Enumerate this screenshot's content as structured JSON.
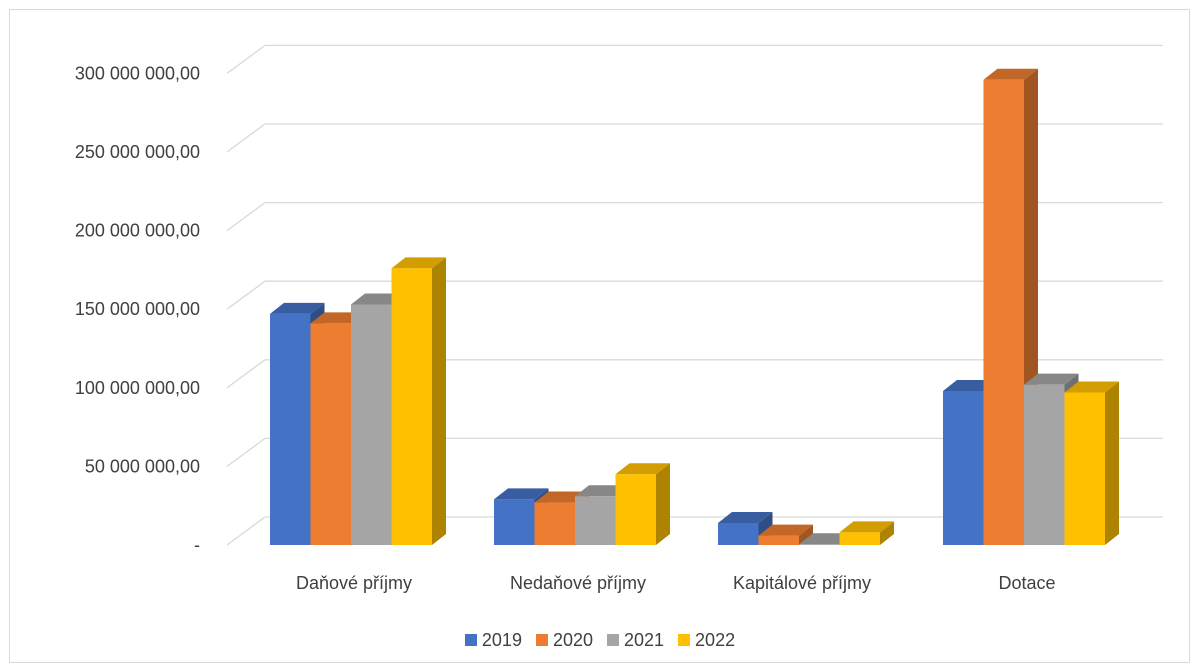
{
  "chart_data": {
    "type": "bar",
    "style": "3d-clustered-column",
    "categories": [
      "Daňové příjmy",
      "Nedaňové příjmy",
      "Kapitálové příjmy",
      "Dotace"
    ],
    "series": [
      {
        "name": "2019",
        "color": "#4472C4",
        "values": [
          147000000,
          29000000,
          14000000,
          98000000
        ]
      },
      {
        "name": "2020",
        "color": "#ED7D31",
        "values": [
          141000000,
          27000000,
          6000000,
          296000000
        ]
      },
      {
        "name": "2021",
        "color": "#A5A5A5",
        "values": [
          153000000,
          31000000,
          500000,
          102000000
        ]
      },
      {
        "name": "2022",
        "color": "#FFC000",
        "values": [
          176000000,
          45000000,
          8000000,
          97000000
        ]
      }
    ],
    "yticks": [
      "-",
      "50 000 000,00",
      "100 000 000,00",
      "150 000 000,00",
      "200 000 000,00",
      "250 000 000,00",
      "300 000 000,00"
    ],
    "ylim": [
      0,
      300000000
    ],
    "grid": true,
    "legend_position": "bottom"
  }
}
